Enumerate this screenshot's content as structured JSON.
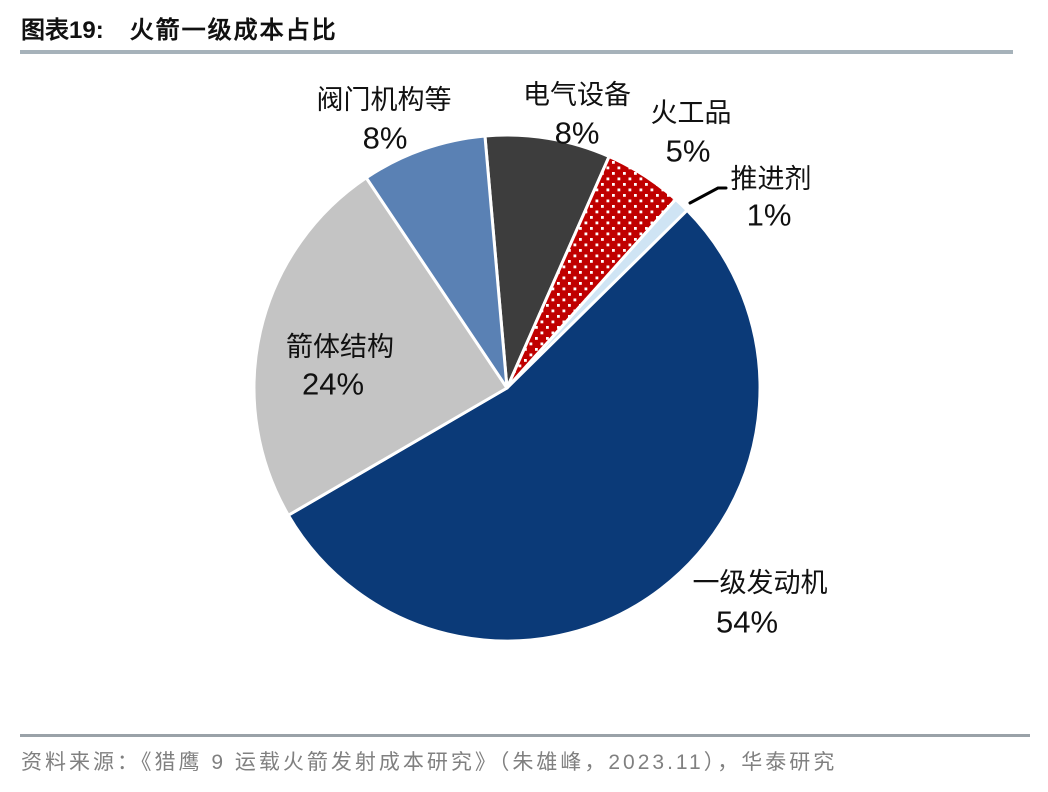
{
  "figure": {
    "label": "图表19:",
    "title": "火箭一级成本占比"
  },
  "source": {
    "label": "资料来源：",
    "text": "《猎鹰 9 运载火箭发射成本研究》（朱雄峰，2023.11），华泰研究"
  },
  "chart_data": {
    "type": "pie",
    "title": "火箭一级成本占比",
    "unit": "%",
    "direction": "clockwise",
    "start_angle_deg": -5,
    "series": [
      {
        "key": "electrical-equipment",
        "label": "电气设备",
        "value": 8,
        "color": "#3d3d3d",
        "fill_pattern": "solid"
      },
      {
        "key": "pyrotechnics",
        "label": "火工品",
        "value": 5,
        "color": "#c00000",
        "fill_pattern": "white-dots"
      },
      {
        "key": "propellant",
        "label": "推进剂",
        "value": 1,
        "color": "#cfe4f4",
        "fill_pattern": "solid",
        "leader_line": true
      },
      {
        "key": "first-stage-engine",
        "label": "一级发动机",
        "value": 54,
        "color": "#0b3a78",
        "fill_pattern": "solid"
      },
      {
        "key": "rocket-body-structure",
        "label": "箭体结构",
        "value": 24,
        "color": "#c4c4c4",
        "fill_pattern": "solid"
      },
      {
        "key": "valve-mechanism-etc",
        "label": "阀门机构等",
        "value": 8,
        "color": "#5a81b4",
        "fill_pattern": "solid"
      }
    ],
    "colors": {
      "slice_border": "#ffffff",
      "label_text": "#111111",
      "leader_line": "#000000",
      "title_rule": "#a6b2ba",
      "source_rule": "#9aa2a8",
      "source_text": "#808080"
    }
  }
}
